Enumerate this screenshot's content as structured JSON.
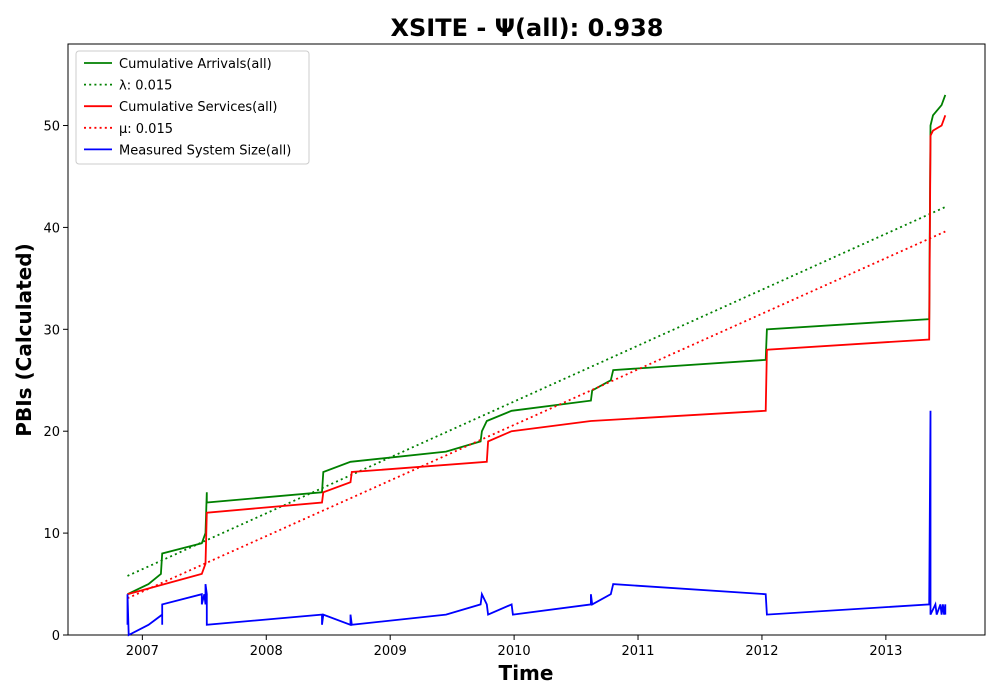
{
  "chart_data": {
    "type": "line",
    "title": "XSITE -  Ψ(all): 0.938",
    "xlabel": "Time",
    "ylabel": "PBIs (Calculated)",
    "xlim": [
      2006.4,
      2013.8
    ],
    "ylim": [
      0,
      58
    ],
    "x_ticks": [
      2007,
      2008,
      2009,
      2010,
      2011,
      2012,
      2013
    ],
    "y_ticks": [
      0,
      10,
      20,
      30,
      40,
      50
    ],
    "grid": false,
    "legend_position": "upper-left",
    "series": [
      {
        "name": "Cumulative Arrivals(all)",
        "color": "#008000",
        "style": "solid",
        "points": [
          [
            2006.88,
            4
          ],
          [
            2007.05,
            5
          ],
          [
            2007.15,
            6
          ],
          [
            2007.16,
            8
          ],
          [
            2007.48,
            9
          ],
          [
            2007.51,
            10
          ],
          [
            2007.52,
            14
          ],
          [
            2007.52,
            13
          ],
          [
            2008.45,
            14
          ],
          [
            2008.46,
            16
          ],
          [
            2008.68,
            17
          ],
          [
            2009.45,
            18
          ],
          [
            2009.73,
            19
          ],
          [
            2009.74,
            20
          ],
          [
            2009.78,
            21
          ],
          [
            2009.98,
            22
          ],
          [
            2010.62,
            23
          ],
          [
            2010.63,
            24
          ],
          [
            2010.78,
            25
          ],
          [
            2010.8,
            26
          ],
          [
            2012.03,
            27
          ],
          [
            2012.04,
            30
          ],
          [
            2013.35,
            31
          ],
          [
            2013.36,
            50
          ],
          [
            2013.38,
            51
          ],
          [
            2013.45,
            52
          ],
          [
            2013.48,
            53
          ]
        ]
      },
      {
        "name": "λ: 0.015",
        "color": "#008000",
        "style": "dotted",
        "points": [
          [
            2006.88,
            5.8
          ],
          [
            2013.48,
            42
          ]
        ]
      },
      {
        "name": "Cumulative Services(all)",
        "color": "#ff0000",
        "style": "solid",
        "points": [
          [
            2006.88,
            4
          ],
          [
            2007.48,
            6
          ],
          [
            2007.51,
            7
          ],
          [
            2007.52,
            12
          ],
          [
            2008.45,
            13
          ],
          [
            2008.46,
            14
          ],
          [
            2008.68,
            15
          ],
          [
            2008.69,
            16
          ],
          [
            2009.78,
            17
          ],
          [
            2009.79,
            19
          ],
          [
            2009.98,
            20
          ],
          [
            2010.62,
            21
          ],
          [
            2012.03,
            22
          ],
          [
            2012.04,
            28
          ],
          [
            2013.35,
            29
          ],
          [
            2013.36,
            49
          ],
          [
            2013.38,
            49.5
          ],
          [
            2013.45,
            50
          ],
          [
            2013.48,
            51
          ]
        ]
      },
      {
        "name": "μ: 0.015",
        "color": "#ff0000",
        "style": "dotted",
        "points": [
          [
            2006.88,
            3.6
          ],
          [
            2013.48,
            39.6
          ]
        ]
      },
      {
        "name": "Measured System Size(all)",
        "color": "#0000ff",
        "style": "solid",
        "points": [
          [
            2006.88,
            4
          ],
          [
            2006.88,
            1
          ],
          [
            2006.88,
            4
          ],
          [
            2006.89,
            0
          ],
          [
            2007.05,
            1
          ],
          [
            2007.16,
            2
          ],
          [
            2007.16,
            1
          ],
          [
            2007.16,
            3
          ],
          [
            2007.48,
            4
          ],
          [
            2007.48,
            3
          ],
          [
            2007.5,
            4
          ],
          [
            2007.51,
            3
          ],
          [
            2007.51,
            5
          ],
          [
            2007.52,
            4
          ],
          [
            2007.52,
            1
          ],
          [
            2008.45,
            2
          ],
          [
            2008.45,
            1
          ],
          [
            2008.46,
            2
          ],
          [
            2008.68,
            1
          ],
          [
            2008.68,
            2
          ],
          [
            2008.69,
            1
          ],
          [
            2009.45,
            2
          ],
          [
            2009.73,
            3
          ],
          [
            2009.74,
            4
          ],
          [
            2009.78,
            3
          ],
          [
            2009.79,
            2
          ],
          [
            2009.98,
            3
          ],
          [
            2009.99,
            2
          ],
          [
            2010.62,
            3
          ],
          [
            2010.62,
            4
          ],
          [
            2010.63,
            3
          ],
          [
            2010.78,
            4
          ],
          [
            2010.8,
            5
          ],
          [
            2012.03,
            4
          ],
          [
            2012.04,
            2
          ],
          [
            2013.35,
            3
          ],
          [
            2013.36,
            22
          ],
          [
            2013.36,
            2
          ],
          [
            2013.4,
            3
          ],
          [
            2013.41,
            2
          ],
          [
            2013.44,
            3
          ],
          [
            2013.45,
            2
          ],
          [
            2013.46,
            3
          ],
          [
            2013.47,
            2
          ],
          [
            2013.48,
            3
          ],
          [
            2013.48,
            2
          ]
        ]
      }
    ]
  }
}
